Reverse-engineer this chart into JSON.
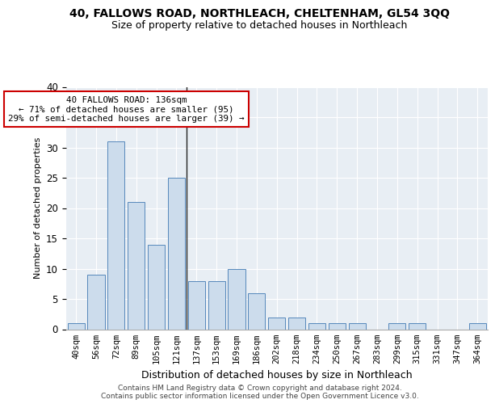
{
  "title1": "40, FALLOWS ROAD, NORTHLEACH, CHELTENHAM, GL54 3QQ",
  "title2": "Size of property relative to detached houses in Northleach",
  "xlabel": "Distribution of detached houses by size in Northleach",
  "ylabel": "Number of detached properties",
  "bar_color": "#ccdcec",
  "bar_edge_color": "#5588bb",
  "categories": [
    "40sqm",
    "56sqm",
    "72sqm",
    "89sqm",
    "105sqm",
    "121sqm",
    "137sqm",
    "153sqm",
    "169sqm",
    "186sqm",
    "202sqm",
    "218sqm",
    "234sqm",
    "250sqm",
    "267sqm",
    "283sqm",
    "299sqm",
    "315sqm",
    "331sqm",
    "347sqm",
    "364sqm"
  ],
  "values": [
    1,
    9,
    31,
    21,
    14,
    25,
    8,
    8,
    10,
    6,
    2,
    2,
    1,
    1,
    1,
    0,
    1,
    1,
    0,
    0,
    1
  ],
  "ylim": [
    0,
    40
  ],
  "yticks": [
    0,
    5,
    10,
    15,
    20,
    25,
    30,
    35,
    40
  ],
  "annotation_line1": "40 FALLOWS ROAD: 136sqm",
  "annotation_line2": "← 71% of detached houses are smaller (95)",
  "annotation_line3": "29% of semi-detached houses are larger (39) →",
  "vline_idx": 6,
  "box_color": "#cc0000",
  "background_color": "#e8eef4",
  "grid_color": "#ffffff",
  "footer1": "Contains HM Land Registry data © Crown copyright and database right 2024.",
  "footer2": "Contains public sector information licensed under the Open Government Licence v3.0.",
  "title1_fontsize": 10,
  "title2_fontsize": 9,
  "ylabel_fontsize": 8,
  "xlabel_fontsize": 9,
  "tick_fontsize": 7.5,
  "ytick_fontsize": 8.5
}
